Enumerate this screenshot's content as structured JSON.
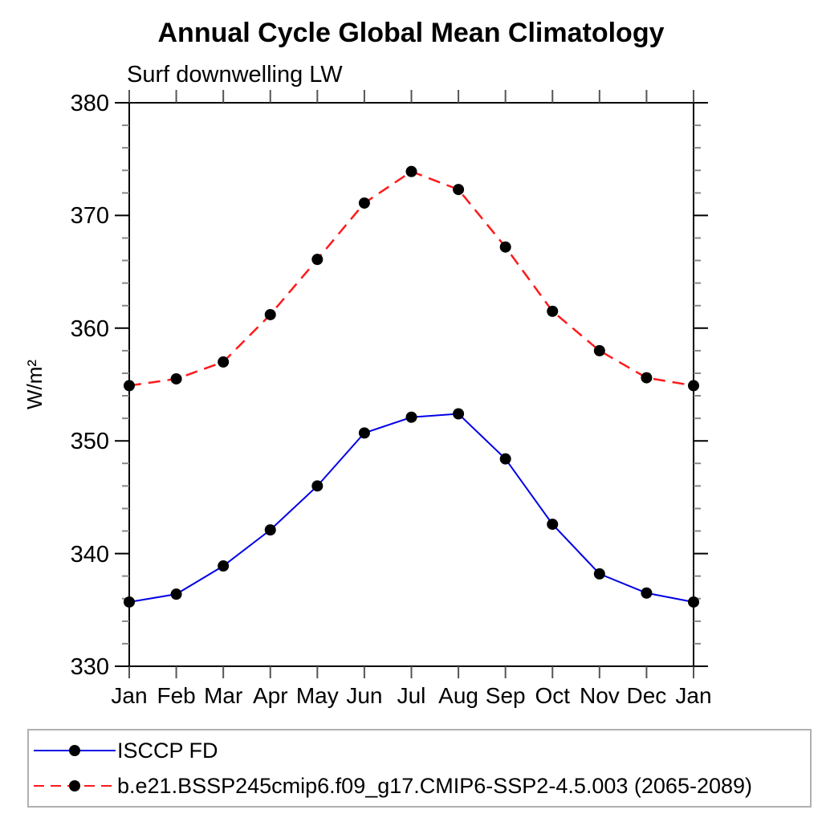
{
  "chart_data": {
    "type": "line",
    "title": "Annual Cycle Global Mean Climatology",
    "subtitle": "Surf downwelling LW",
    "ylabel": "W/m²",
    "xlabel": "",
    "ylim": [
      330,
      380
    ],
    "ytick_major_step": 10,
    "ytick_minor_step": 2,
    "ytick_labels_top_to_bottom": [
      "380",
      "370",
      "360",
      "350",
      "340",
      "330"
    ],
    "categories": [
      "Jan",
      "Feb",
      "Mar",
      "Apr",
      "May",
      "Jun",
      "Jul",
      "Aug",
      "Sep",
      "Oct",
      "Nov",
      "Dec",
      "Jan"
    ],
    "grid": false,
    "legend_position": "bottom-left-box",
    "axis_color": "#000000",
    "minor_tick_color": "#888888",
    "month_tick_color": "#555555",
    "marker_shape": "filled-circle",
    "series": [
      {
        "name": "ISCCP FD",
        "color": "#0000e6",
        "style": "solid",
        "marker_color": "#000000",
        "values": [
          335.7,
          336.4,
          338.9,
          342.1,
          346.0,
          350.7,
          352.1,
          352.4,
          348.4,
          342.6,
          338.2,
          336.5,
          335.7
        ]
      },
      {
        "name": "b.e21.BSSP245cmip6.f09_g17.CMIP6-SSP2-4.5.003 (2065-2089)",
        "color": "#ff1a1a",
        "style": "dashed",
        "marker_color": "#000000",
        "values": [
          354.9,
          355.5,
          357.0,
          361.2,
          366.1,
          371.1,
          373.9,
          372.3,
          367.2,
          361.5,
          358.0,
          355.6,
          354.9
        ]
      }
    ]
  }
}
